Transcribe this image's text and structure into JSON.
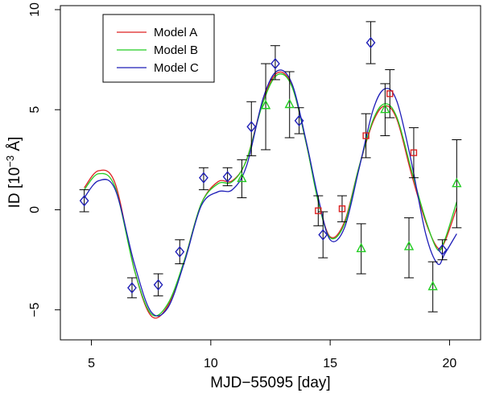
{
  "chart_data": {
    "type": "scatter",
    "title": "",
    "xlabel": "MJD−55095 [day]",
    "ylabel": "ID [10",
    "ylabel_exp": "−3",
    "ylabel_unit": " Å]",
    "xlim": [
      3.7,
      21.3
    ],
    "ylim": [
      -6.5,
      10.2
    ],
    "xticks": [
      5,
      10,
      15,
      20
    ],
    "yticks": [
      -5,
      0,
      5,
      10
    ],
    "legend": {
      "position": "top-left",
      "entries": [
        {
          "name": "Model A",
          "color": "#dd2222"
        },
        {
          "name": "Model B",
          "color": "#22cc22"
        },
        {
          "name": "Model C",
          "color": "#1f1fb8"
        }
      ]
    },
    "series": [
      {
        "name": "Data (diamond)",
        "marker": "diamond",
        "color": "#1f1fb8",
        "points": [
          {
            "x": 4.7,
            "y": 0.45,
            "lo": -0.1,
            "hi": 1.0
          },
          {
            "x": 6.7,
            "y": -3.9,
            "lo": -4.4,
            "hi": -3.4
          },
          {
            "x": 7.8,
            "y": -3.75,
            "lo": -4.3,
            "hi": -3.2
          },
          {
            "x": 8.7,
            "y": -2.1,
            "lo": -2.7,
            "hi": -1.5
          },
          {
            "x": 9.7,
            "y": 1.6,
            "lo": 1.0,
            "hi": 2.1
          },
          {
            "x": 10.7,
            "y": 1.65,
            "lo": 1.2,
            "hi": 2.1
          },
          {
            "x": 11.7,
            "y": 4.15,
            "lo": 2.7,
            "hi": 5.4
          },
          {
            "x": 12.7,
            "y": 7.3,
            "lo": 6.5,
            "hi": 8.2
          },
          {
            "x": 13.7,
            "y": 4.45,
            "lo": 3.8,
            "hi": 5.1
          },
          {
            "x": 14.7,
            "y": -1.25,
            "lo": -2.4,
            "hi": -0.1
          },
          {
            "x": 16.7,
            "y": 8.35,
            "lo": 7.3,
            "hi": 9.4
          },
          {
            "x": 19.7,
            "y": -2.0,
            "lo": -2.5,
            "hi": -1.5
          }
        ]
      },
      {
        "name": "Data (square)",
        "marker": "square",
        "color": "#dd2222",
        "points": [
          {
            "x": 14.5,
            "y": -0.05,
            "lo": -0.8,
            "hi": 0.7
          },
          {
            "x": 15.5,
            "y": 0.05,
            "lo": -0.6,
            "hi": 0.7
          },
          {
            "x": 16.5,
            "y": 3.7,
            "lo": 2.6,
            "hi": 4.8
          },
          {
            "x": 17.5,
            "y": 5.8,
            "lo": 4.6,
            "hi": 7.0
          },
          {
            "x": 18.5,
            "y": 2.85,
            "lo": 1.6,
            "hi": 4.1
          }
        ]
      },
      {
        "name": "Data (triangle)",
        "marker": "triangle",
        "color": "#22cc22",
        "points": [
          {
            "x": 11.3,
            "y": 1.55,
            "lo": 0.6,
            "hi": 2.5
          },
          {
            "x": 12.3,
            "y": 5.2,
            "lo": 3.0,
            "hi": 7.3
          },
          {
            "x": 13.3,
            "y": 5.25,
            "lo": 3.6,
            "hi": 6.9
          },
          {
            "x": 16.3,
            "y": -1.95,
            "lo": -3.2,
            "hi": -0.7
          },
          {
            "x": 17.3,
            "y": 5.0,
            "lo": 3.7,
            "hi": 6.3
          },
          {
            "x": 18.3,
            "y": -1.85,
            "lo": -3.4,
            "hi": -0.4
          },
          {
            "x": 19.3,
            "y": -3.85,
            "lo": -5.1,
            "hi": -2.6
          },
          {
            "x": 20.3,
            "y": 1.3,
            "lo": -0.9,
            "hi": 3.5
          }
        ]
      }
    ],
    "models": [
      {
        "name": "Model A",
        "color": "#dd2222",
        "x": [
          4.7,
          5.3,
          6.0,
          6.8,
          7.5,
          8.2,
          8.9,
          9.6,
          10.3,
          10.9,
          11.5,
          12.2,
          12.8,
          13.4,
          14.0,
          14.5,
          15.0,
          15.6,
          16.2,
          16.8,
          17.3,
          17.8,
          18.4,
          19.0,
          19.5,
          19.8,
          20.3
        ],
        "y": [
          1.1,
          1.95,
          1.3,
          -3.0,
          -5.3,
          -4.8,
          -2.5,
          0.3,
          1.4,
          1.45,
          2.5,
          5.5,
          6.85,
          6.2,
          3.3,
          0.5,
          -1.35,
          -0.6,
          2.1,
          4.4,
          5.2,
          4.5,
          1.8,
          -0.6,
          -1.9,
          -1.6,
          0.1
        ]
      },
      {
        "name": "Model B",
        "color": "#22cc22",
        "x": [
          4.7,
          5.3,
          6.0,
          6.8,
          7.5,
          8.2,
          8.9,
          9.6,
          10.3,
          10.9,
          11.5,
          12.2,
          12.8,
          13.4,
          14.0,
          14.5,
          15.0,
          15.6,
          16.2,
          16.8,
          17.3,
          17.8,
          18.4,
          19.0,
          19.5,
          19.8,
          20.3
        ],
        "y": [
          1.0,
          1.8,
          1.1,
          -3.0,
          -5.2,
          -4.7,
          -2.5,
          0.3,
          1.3,
          1.4,
          2.5,
          5.4,
          6.75,
          6.15,
          3.3,
          0.4,
          -1.4,
          -0.7,
          2.1,
          4.5,
          5.3,
          4.6,
          2.0,
          -0.5,
          -2.0,
          -1.5,
          0.4
        ]
      },
      {
        "name": "Model C",
        "color": "#1f1fb8",
        "x": [
          4.7,
          5.3,
          6.0,
          6.8,
          7.5,
          8.2,
          8.9,
          9.6,
          10.3,
          10.9,
          11.5,
          12.2,
          12.8,
          13.4,
          14.0,
          14.5,
          15.0,
          15.6,
          16.2,
          16.8,
          17.3,
          17.8,
          18.4,
          19.0,
          19.5,
          19.8,
          20.3
        ],
        "y": [
          0.6,
          1.45,
          1.0,
          -2.7,
          -5.1,
          -4.9,
          -2.6,
          0.2,
          0.9,
          1.0,
          2.2,
          5.6,
          6.95,
          6.3,
          3.4,
          0.6,
          -1.5,
          -0.9,
          2.0,
          5.0,
          6.05,
          5.4,
          2.4,
          -1.2,
          -2.7,
          -2.2,
          -1.2
        ]
      }
    ]
  }
}
